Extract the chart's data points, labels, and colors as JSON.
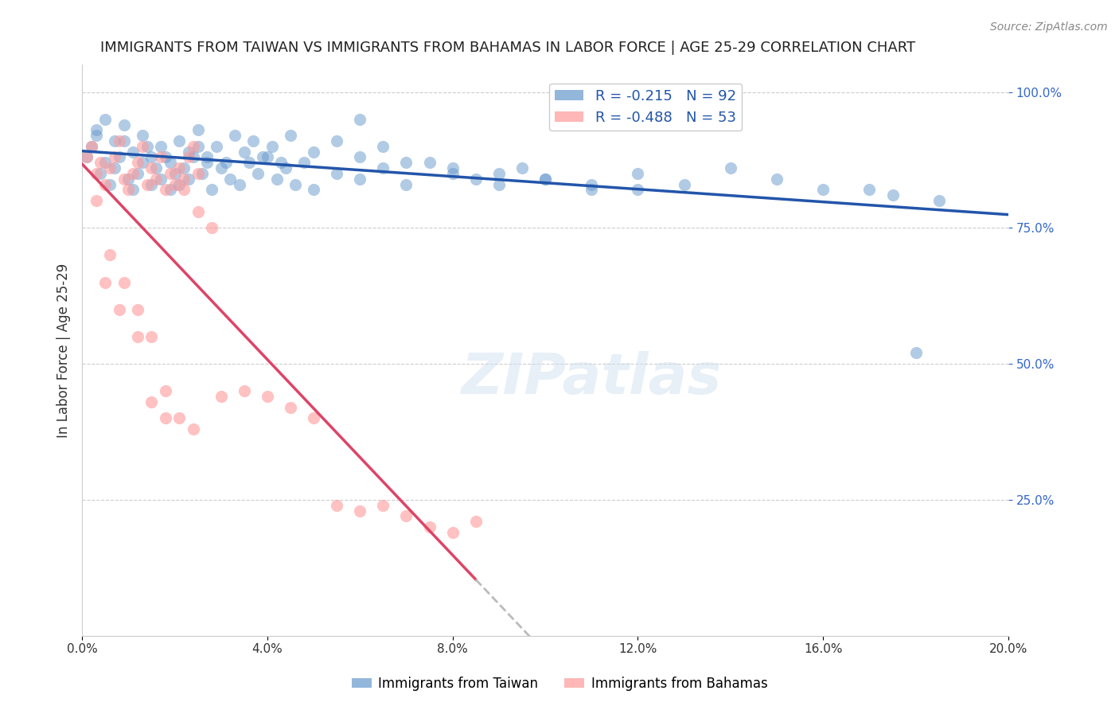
{
  "title": "IMMIGRANTS FROM TAIWAN VS IMMIGRANTS FROM BAHAMAS IN LABOR FORCE | AGE 25-29 CORRELATION CHART",
  "source": "Source: ZipAtlas.com",
  "ylabel": "In Labor Force | Age 25-29",
  "xlabel_bottom": "",
  "xlim": [
    0.0,
    0.2
  ],
  "ylim": [
    0.0,
    1.05
  ],
  "right_yticks": [
    1.0,
    0.75,
    0.5,
    0.25
  ],
  "right_yticklabels": [
    "100.0%",
    "75.0%",
    "50.0%",
    "25.0%"
  ],
  "grid_color": "#cccccc",
  "taiwan_color": "#6699cc",
  "bahamas_color": "#ff9999",
  "taiwan_trend_color": "#2255aa",
  "bahamas_trend_color": "#dd4466",
  "taiwan_R": -0.215,
  "taiwan_N": 92,
  "bahamas_R": -0.488,
  "bahamas_N": 53,
  "legend_taiwan": "Immigrants from Taiwan",
  "legend_bahamas": "Immigrants from Bahamas",
  "watermark": "ZIPatlas",
  "taiwan_scatter_x": [
    0.001,
    0.002,
    0.003,
    0.004,
    0.005,
    0.006,
    0.007,
    0.008,
    0.009,
    0.01,
    0.011,
    0.012,
    0.013,
    0.014,
    0.015,
    0.016,
    0.017,
    0.018,
    0.019,
    0.02,
    0.021,
    0.022,
    0.023,
    0.024,
    0.025,
    0.026,
    0.027,
    0.028,
    0.03,
    0.032,
    0.034,
    0.036,
    0.038,
    0.04,
    0.042,
    0.044,
    0.046,
    0.048,
    0.05,
    0.055,
    0.06,
    0.065,
    0.07,
    0.075,
    0.08,
    0.085,
    0.09,
    0.095,
    0.1,
    0.11,
    0.12,
    0.13,
    0.14,
    0.15,
    0.16,
    0.003,
    0.005,
    0.007,
    0.009,
    0.011,
    0.013,
    0.015,
    0.017,
    0.019,
    0.021,
    0.023,
    0.025,
    0.027,
    0.029,
    0.031,
    0.033,
    0.035,
    0.037,
    0.039,
    0.041,
    0.043,
    0.045,
    0.05,
    0.055,
    0.06,
    0.065,
    0.07,
    0.08,
    0.09,
    0.1,
    0.11,
    0.12,
    0.06,
    0.17,
    0.175,
    0.18,
    0.185
  ],
  "taiwan_scatter_y": [
    0.88,
    0.9,
    0.92,
    0.85,
    0.87,
    0.83,
    0.86,
    0.88,
    0.91,
    0.84,
    0.82,
    0.85,
    0.87,
    0.9,
    0.83,
    0.86,
    0.84,
    0.88,
    0.82,
    0.85,
    0.83,
    0.86,
    0.84,
    0.88,
    0.9,
    0.85,
    0.87,
    0.82,
    0.86,
    0.84,
    0.83,
    0.87,
    0.85,
    0.88,
    0.84,
    0.86,
    0.83,
    0.87,
    0.82,
    0.85,
    0.84,
    0.86,
    0.83,
    0.87,
    0.85,
    0.84,
    0.83,
    0.86,
    0.84,
    0.82,
    0.85,
    0.83,
    0.86,
    0.84,
    0.82,
    0.93,
    0.95,
    0.91,
    0.94,
    0.89,
    0.92,
    0.88,
    0.9,
    0.87,
    0.91,
    0.89,
    0.93,
    0.88,
    0.9,
    0.87,
    0.92,
    0.89,
    0.91,
    0.88,
    0.9,
    0.87,
    0.92,
    0.89,
    0.91,
    0.88,
    0.9,
    0.87,
    0.86,
    0.85,
    0.84,
    0.83,
    0.82,
    0.95,
    0.82,
    0.81,
    0.52,
    0.8
  ],
  "bahamas_scatter_x": [
    0.001,
    0.002,
    0.003,
    0.004,
    0.005,
    0.006,
    0.007,
    0.008,
    0.009,
    0.01,
    0.011,
    0.012,
    0.013,
    0.014,
    0.015,
    0.016,
    0.017,
    0.018,
    0.019,
    0.02,
    0.021,
    0.022,
    0.023,
    0.024,
    0.025,
    0.005,
    0.008,
    0.012,
    0.015,
    0.018,
    0.022,
    0.025,
    0.028,
    0.03,
    0.035,
    0.04,
    0.045,
    0.05,
    0.055,
    0.06,
    0.065,
    0.07,
    0.075,
    0.08,
    0.085,
    0.003,
    0.006,
    0.009,
    0.012,
    0.015,
    0.018,
    0.021,
    0.024
  ],
  "bahamas_scatter_y": [
    0.88,
    0.9,
    0.85,
    0.87,
    0.83,
    0.86,
    0.88,
    0.91,
    0.84,
    0.82,
    0.85,
    0.87,
    0.9,
    0.83,
    0.86,
    0.84,
    0.88,
    0.82,
    0.85,
    0.83,
    0.86,
    0.84,
    0.88,
    0.9,
    0.85,
    0.65,
    0.6,
    0.55,
    0.43,
    0.4,
    0.82,
    0.78,
    0.75,
    0.44,
    0.45,
    0.44,
    0.42,
    0.4,
    0.24,
    0.23,
    0.24,
    0.22,
    0.2,
    0.19,
    0.21,
    0.8,
    0.7,
    0.65,
    0.6,
    0.55,
    0.45,
    0.4,
    0.38
  ]
}
